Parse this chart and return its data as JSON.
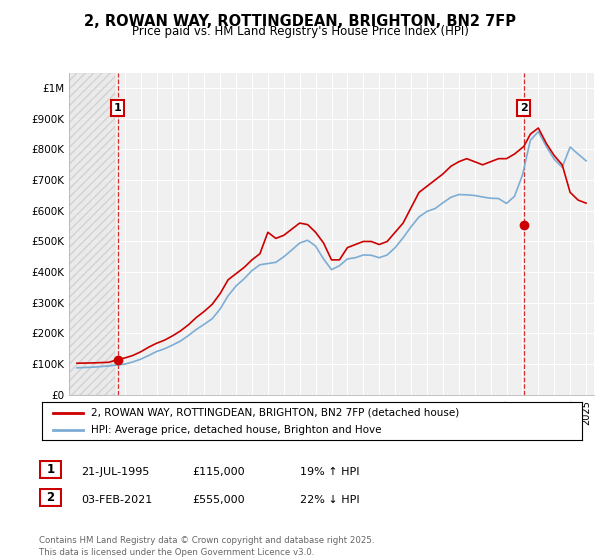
{
  "title": "2, ROWAN WAY, ROTTINGDEAN, BRIGHTON, BN2 7FP",
  "subtitle": "Price paid vs. HM Land Registry's House Price Index (HPI)",
  "ylabel_ticks": [
    "£0",
    "£100K",
    "£200K",
    "£300K",
    "£400K",
    "£500K",
    "£600K",
    "£700K",
    "£800K",
    "£900K",
    "£1M"
  ],
  "ytick_vals": [
    0,
    100000,
    200000,
    300000,
    400000,
    500000,
    600000,
    700000,
    800000,
    900000,
    1000000
  ],
  "ylim": [
    0,
    1050000
  ],
  "xlim_start": 1992.5,
  "xlim_end": 2025.5,
  "background_color": "#f0f0f0",
  "grid_color": "#ffffff",
  "line_color_red": "#cc0000",
  "line_color_blue": "#7dadd4",
  "marker_color_red": "#cc0000",
  "annotation_box_color": "#cc0000",
  "dashed_line_color": "#cc0000",
  "legend_label_red": "2, ROWAN WAY, ROTTINGDEAN, BRIGHTON, BN2 7FP (detached house)",
  "legend_label_blue": "HPI: Average price, detached house, Brighton and Hove",
  "sale1_label": "1",
  "sale1_date": "21-JUL-1995",
  "sale1_price": "£115,000",
  "sale1_hpi": "19% ↑ HPI",
  "sale1_year": 1995.55,
  "sale1_value": 115000,
  "sale2_label": "2",
  "sale2_date": "03-FEB-2021",
  "sale2_price": "£555,000",
  "sale2_hpi": "22% ↓ HPI",
  "sale2_year": 2021.09,
  "sale2_value": 555000,
  "footer": "Contains HM Land Registry data © Crown copyright and database right 2025.\nThis data is licensed under the Open Government Licence v3.0.",
  "hpi_red_years": [
    1993.0,
    1993.5,
    1994.0,
    1994.5,
    1995.0,
    1995.55,
    1996.0,
    1996.5,
    1997.0,
    1997.5,
    1998.0,
    1998.5,
    1999.0,
    1999.5,
    2000.0,
    2000.5,
    2001.0,
    2001.5,
    2002.0,
    2002.5,
    2003.0,
    2003.5,
    2004.0,
    2004.5,
    2005.0,
    2005.5,
    2006.0,
    2006.5,
    2007.0,
    2007.5,
    2008.0,
    2008.5,
    2009.0,
    2009.5,
    2010.0,
    2010.5,
    2011.0,
    2011.5,
    2012.0,
    2012.5,
    2013.0,
    2013.5,
    2014.0,
    2014.5,
    2015.0,
    2015.5,
    2016.0,
    2016.5,
    2017.0,
    2017.5,
    2018.0,
    2018.5,
    2019.0,
    2019.5,
    2020.0,
    2020.5,
    2021.09,
    2021.5,
    2022.0,
    2022.5,
    2023.0,
    2023.5,
    2024.0,
    2024.5,
    2025.0
  ],
  "hpi_red_vals": [
    103000,
    103500,
    104000,
    105000,
    106000,
    115000,
    120000,
    128000,
    140000,
    155000,
    168000,
    178000,
    192000,
    208000,
    228000,
    252000,
    272000,
    295000,
    330000,
    375000,
    395000,
    415000,
    440000,
    460000,
    530000,
    510000,
    520000,
    540000,
    560000,
    555000,
    530000,
    495000,
    440000,
    440000,
    480000,
    490000,
    500000,
    500000,
    490000,
    500000,
    530000,
    560000,
    610000,
    660000,
    680000,
    700000,
    720000,
    745000,
    760000,
    770000,
    760000,
    750000,
    760000,
    770000,
    770000,
    785000,
    810000,
    850000,
    870000,
    820000,
    780000,
    750000,
    660000,
    635000,
    625000
  ],
  "hpi_blue_years": [
    1993.0,
    1993.5,
    1994.0,
    1994.5,
    1995.0,
    1995.5,
    1996.0,
    1996.5,
    1997.0,
    1997.5,
    1998.0,
    1998.5,
    1999.0,
    1999.5,
    2000.0,
    2000.5,
    2001.0,
    2001.5,
    2002.0,
    2002.5,
    2003.0,
    2003.5,
    2004.0,
    2004.5,
    2005.0,
    2005.5,
    2006.0,
    2006.5,
    2007.0,
    2007.5,
    2008.0,
    2008.5,
    2009.0,
    2009.5,
    2010.0,
    2010.5,
    2011.0,
    2011.5,
    2012.0,
    2012.5,
    2013.0,
    2013.5,
    2014.0,
    2014.5,
    2015.0,
    2015.5,
    2016.0,
    2016.5,
    2017.0,
    2017.5,
    2018.0,
    2018.5,
    2019.0,
    2019.5,
    2020.0,
    2020.5,
    2021.0,
    2021.5,
    2022.0,
    2022.5,
    2023.0,
    2023.5,
    2024.0,
    2024.5,
    2025.0
  ],
  "hpi_blue_vals": [
    88000,
    89000,
    90000,
    92000,
    94000,
    97000,
    100000,
    107000,
    116000,
    128000,
    141000,
    150000,
    162000,
    175000,
    193000,
    213000,
    230000,
    248000,
    280000,
    323000,
    355000,
    378000,
    405000,
    424000,
    428000,
    432000,
    450000,
    472000,
    495000,
    504000,
    485000,
    443000,
    408000,
    421000,
    443000,
    447000,
    456000,
    455000,
    447000,
    456000,
    480000,
    512000,
    548000,
    580000,
    598000,
    607000,
    626000,
    644000,
    653000,
    652000,
    650000,
    645000,
    641000,
    640000,
    624000,
    647000,
    716000,
    830000,
    858000,
    810000,
    768000,
    742000,
    808000,
    785000,
    763000
  ]
}
